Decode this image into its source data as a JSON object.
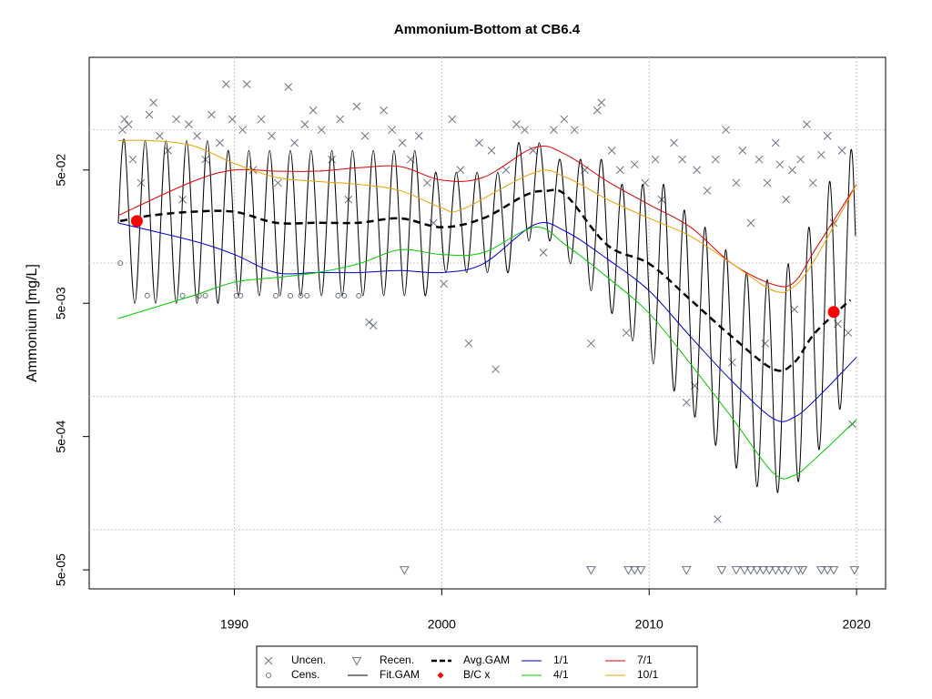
{
  "chart_data": {
    "type": "line",
    "title": "Ammonium-Bottom at CB6.4",
    "y_label": "Ammonium [mg/L]",
    "log_y": true,
    "grid": true,
    "xlim": [
      1983,
      2021.4
    ],
    "xticks": [
      1990,
      2000,
      2010,
      2020
    ],
    "ylim": [
      3.6e-05,
      0.35
    ],
    "yticks": [
      {
        "value": 0.05,
        "label": "5e-02"
      },
      {
        "value": 0.005,
        "label": "5e-03"
      },
      {
        "value": 0.0005,
        "label": "5e-04"
      },
      {
        "value": 5e-05,
        "label": "5e-05"
      }
    ],
    "ygrid": [
      0.1,
      0.01,
      0.001,
      0.0001
    ],
    "legend": "bottom",
    "series": [
      {
        "name": "Uncen.",
        "color": "#6b7280",
        "style": "x",
        "x": [
          1984.6,
          1984.7,
          1984.9,
          1985.1,
          1985.5,
          1985.9,
          1986.1,
          1986.4,
          1986.8,
          1987.2,
          1987.5,
          1987.8,
          1988.2,
          1988.6,
          1988.9,
          1989.3,
          1989.6,
          1989.9,
          1990.4,
          1990.6,
          1990.9,
          1991.3,
          1991.8,
          1992.1,
          1992.6,
          1992.9,
          1993.4,
          1993.8,
          1994.2,
          1994.7,
          1995.1,
          1995.5,
          1995.9,
          1996.3,
          1996.5,
          1996.7,
          1997.2,
          1997.6,
          1998.1,
          1998.5,
          1998.9,
          1999.3,
          1999.6,
          2000.1,
          2000.5,
          2000.9,
          2001.3,
          2001.8,
          2002.4,
          2002.6,
          2003.1,
          2003.6,
          2004.0,
          2004.4,
          2004.9,
          2005.4,
          2005.9,
          2006.4,
          2006.9,
          2007.2,
          2007.5,
          2007.7,
          2008.2,
          2008.6,
          2008.9,
          2009.3,
          2009.8,
          2010.3,
          2010.6,
          2011.2,
          2011.6,
          2012.3,
          2012.8,
          2013.2,
          2013.7,
          2014.2,
          2014.5,
          2014.9,
          2015.3,
          2015.7,
          2016.1,
          2016.3,
          2016.6,
          2016.9,
          2017.3,
          2017.6,
          2017.9,
          2018.3,
          2018.6,
          2018.9,
          2019.3,
          2019.6,
          2019.8,
          2013.3,
          2011.8,
          2012.2,
          2014.0,
          2015.6,
          2017.0,
          2019.1
        ],
        "values": [
          0.1,
          0.12,
          0.11,
          0.06,
          0.04,
          0.13,
          0.16,
          0.09,
          0.07,
          0.12,
          0.03,
          0.11,
          0.09,
          0.06,
          0.13,
          0.08,
          0.22,
          0.12,
          0.1,
          0.22,
          0.05,
          0.12,
          0.09,
          0.04,
          0.21,
          0.08,
          0.11,
          0.14,
          0.1,
          0.06,
          0.12,
          0.03,
          0.15,
          0.09,
          0.0036,
          0.0034,
          0.14,
          0.1,
          0.08,
          0.06,
          0.09,
          0.04,
          0.02,
          0.007,
          0.12,
          0.05,
          0.0025,
          0.08,
          0.07,
          0.0016,
          0.05,
          0.11,
          0.1,
          0.07,
          0.012,
          0.1,
          0.12,
          0.1,
          0.05,
          0.0025,
          0.14,
          0.16,
          0.07,
          0.05,
          0.003,
          0.055,
          0.04,
          0.06,
          0.03,
          0.08,
          0.06,
          0.05,
          0.035,
          0.06,
          0.1,
          0.04,
          0.07,
          0.02,
          0.06,
          0.04,
          0.08,
          0.055,
          0.03,
          0.05,
          0.06,
          0.11,
          0.04,
          0.065,
          0.09,
          0.02,
          0.07,
          0.003,
          0.00062,
          0.00012,
          0.0009,
          0.0012,
          0.0018,
          0.0025,
          0.0045,
          0.0035
        ]
      },
      {
        "name": "Cens.",
        "color": "#6b7280",
        "style": "circle",
        "x": [
          1984.5,
          1985.8,
          1987.5,
          1988.3,
          1988.6,
          1990.1,
          1990.3,
          1992.0,
          1992.7,
          1993.2,
          1993.5,
          1995.0,
          1995.3,
          1996.0
        ],
        "values": [
          0.01,
          0.0057,
          0.0057,
          0.0057,
          0.0057,
          0.0057,
          0.0057,
          0.0057,
          0.0057,
          0.0057,
          0.0057,
          0.0057,
          0.0057,
          0.0057
        ]
      },
      {
        "name": "Recen.",
        "color": "#6b7280",
        "style": "triangle",
        "x": [
          1998.2,
          2007.2,
          2009.0,
          2009.3,
          2009.6,
          2011.8,
          2013.5,
          2014.2,
          2014.6,
          2014.9,
          2015.2,
          2015.5,
          2015.8,
          2016.1,
          2016.4,
          2016.7,
          2017.2,
          2017.4,
          2018.3,
          2018.6,
          2018.9,
          2019.9
        ],
        "values": [
          5e-05,
          5e-05,
          5e-05,
          5e-05,
          5e-05,
          5e-05,
          5e-05,
          5e-05,
          5e-05,
          5e-05,
          5e-05,
          5e-05,
          5e-05,
          5e-05,
          5e-05,
          5e-05,
          5e-05,
          5e-05,
          5e-05,
          5e-05,
          5e-05,
          5e-05
        ]
      },
      {
        "name": "Fit.GAM",
        "color": "#000000",
        "style": "line",
        "x": [
          1984.4,
          1984.7,
          1985.2,
          1985.7,
          1986.2,
          1986.7,
          1987.2,
          1987.7,
          1988.2,
          1988.7,
          1989.2,
          1989.7,
          1990.2,
          1990.7,
          1991.2,
          1991.7,
          1992.2,
          1992.7,
          1993.2,
          1993.7,
          1994.2,
          1994.7,
          1995.2,
          1995.7,
          1996.2,
          1996.7,
          1997.2,
          1997.7,
          1998.2,
          1998.7,
          1999.2,
          1999.7,
          2000.2,
          2000.7,
          2001.2,
          2001.7,
          2002.2,
          2002.7,
          2003.2,
          2003.7,
          2004.2,
          2004.7,
          2005.2,
          2005.7,
          2006.2,
          2006.7,
          2007.2,
          2007.7,
          2008.2,
          2008.7,
          2009.2,
          2009.7,
          2010.2,
          2010.7,
          2011.2,
          2011.7,
          2012.2,
          2012.7,
          2013.2,
          2013.7,
          2014.2,
          2014.7,
          2015.2,
          2015.7,
          2016.2,
          2016.7,
          2017.2,
          2017.7,
          2018.2,
          2018.7,
          2019.2,
          2019.7,
          2019.95
        ],
        "values": [
          0.02,
          0.083,
          0.005,
          0.083,
          0.005,
          0.083,
          0.005,
          0.083,
          0.005,
          0.083,
          0.005,
          0.07,
          0.0057,
          0.07,
          0.0057,
          0.07,
          0.0057,
          0.07,
          0.0057,
          0.07,
          0.0057,
          0.07,
          0.0057,
          0.07,
          0.0057,
          0.07,
          0.0057,
          0.07,
          0.0057,
          0.07,
          0.0057,
          0.048,
          0.0085,
          0.048,
          0.0085,
          0.048,
          0.0085,
          0.048,
          0.0085,
          0.08,
          0.0147,
          0.08,
          0.0147,
          0.06,
          0.0099,
          0.06,
          0.0062,
          0.06,
          0.0042,
          0.039,
          0.0026,
          0.039,
          0.00175,
          0.039,
          0.0011,
          0.025,
          0.0007,
          0.0186,
          0.00043,
          0.0126,
          0.00029,
          0.0085,
          0.00021,
          0.0075,
          0.00019,
          0.0099,
          0.00023,
          0.0186,
          0.0004,
          0.041,
          0.0008,
          0.065,
          0.016
        ]
      },
      {
        "name": "Avg.GAM",
        "color": "#000000",
        "style": "dashed",
        "x": [
          1984.5,
          1986,
          1988,
          1990,
          1992,
          1994,
          1996,
          1998,
          2000,
          2002,
          2004,
          2005,
          2006,
          2008,
          2010,
          2012,
          2014,
          2016,
          2017,
          2018,
          2019.7
        ],
        "values": [
          0.0207,
          0.0228,
          0.0243,
          0.0243,
          0.0201,
          0.0201,
          0.0201,
          0.0217,
          0.0186,
          0.0217,
          0.0322,
          0.0348,
          0.0322,
          0.0136,
          0.0099,
          0.0053,
          0.0028,
          0.0016,
          0.0018,
          0.003,
          0.0053
        ]
      },
      {
        "name": "B/C x",
        "color": "#ff0000",
        "style": "dot",
        "x": [
          1985.3,
          2018.9
        ],
        "values": [
          0.0207,
          0.0043
        ]
      },
      {
        "name": "1/1",
        "color": "#0000cd",
        "style": "line",
        "x": [
          1984.4,
          1988,
          1990,
          1992,
          1994,
          1996,
          1998,
          2000,
          2002,
          2004.5,
          2006,
          2008,
          2010,
          2012,
          2014,
          2016,
          2017,
          2018,
          2020
        ],
        "values": [
          0.02,
          0.0147,
          0.0116,
          0.0085,
          0.0085,
          0.0085,
          0.0088,
          0.0085,
          0.0099,
          0.0195,
          0.0172,
          0.0107,
          0.0062,
          0.0028,
          0.0013,
          0.00068,
          0.0007,
          0.00094,
          0.00197
        ]
      },
      {
        "name": "4/1",
        "color": "#00cc00",
        "style": "line",
        "x": [
          1984.4,
          1988,
          1990,
          1992,
          1994,
          1996,
          1998,
          2000,
          2002,
          2004.5,
          2006,
          2008,
          2010,
          2012,
          2014,
          2016,
          2017,
          2018,
          2020
        ],
        "values": [
          0.00385,
          0.0057,
          0.0072,
          0.0078,
          0.0085,
          0.0099,
          0.0126,
          0.0116,
          0.012,
          0.0186,
          0.0136,
          0.0078,
          0.0042,
          0.00175,
          0.00069,
          0.000265,
          0.000256,
          0.00034,
          0.00067
        ]
      },
      {
        "name": "7/1",
        "color": "#e00000",
        "style": "line",
        "x": [
          1984.4,
          1988,
          1990,
          1992,
          1994,
          1996,
          1998,
          2000,
          2002,
          2004.5,
          2006,
          2008,
          2010,
          2012,
          2014,
          2016,
          2017,
          2018,
          2020
        ],
        "values": [
          0.0228,
          0.041,
          0.05,
          0.049,
          0.049,
          0.052,
          0.053,
          0.042,
          0.044,
          0.074,
          0.065,
          0.041,
          0.0275,
          0.0186,
          0.0099,
          0.0069,
          0.0072,
          0.0126,
          0.039
        ]
      },
      {
        "name": "10/1",
        "color": "#f0a000",
        "style": "line",
        "x": [
          1984.4,
          1986,
          1988,
          1990,
          1992,
          1994,
          1996,
          1998,
          2000,
          2001,
          2004.5,
          2006,
          2008,
          2010,
          2012,
          2014,
          2016,
          2017,
          2018,
          2020
        ],
        "values": [
          0.083,
          0.083,
          0.076,
          0.056,
          0.0441,
          0.041,
          0.039,
          0.035,
          0.026,
          0.0254,
          0.048,
          0.044,
          0.03,
          0.0217,
          0.0159,
          0.0099,
          0.0062,
          0.0067,
          0.0107,
          0.039
        ]
      }
    ]
  }
}
